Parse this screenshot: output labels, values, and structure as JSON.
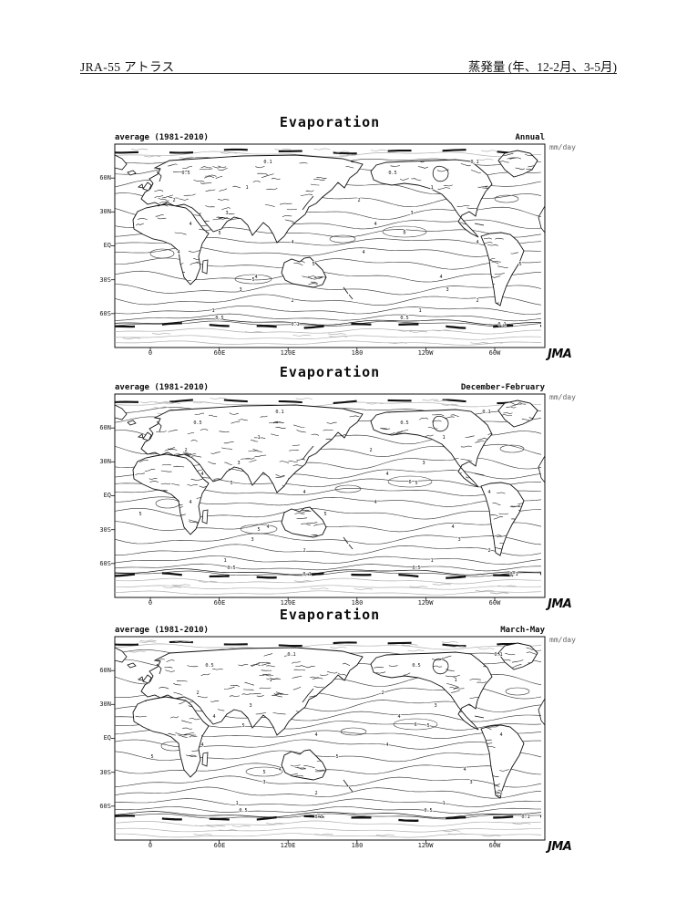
{
  "page": {
    "header_left": "JRA-55 アトラス",
    "header_right": "蒸発量 (年、12-2月、3-5月)"
  },
  "figure": {
    "title": "Evaporation",
    "subtitle_left": "average (1981-2010)",
    "units_label": "mm/day",
    "logo": "JMA",
    "y_axis_ticks": [
      "60N",
      "30N",
      "EQ",
      "30S",
      "60S"
    ],
    "x_axis_ticks": [
      "0",
      "60E",
      "120E",
      "180",
      "120W",
      "60W"
    ],
    "contour_labels": [
      "0.1",
      "0.5",
      "1",
      "2",
      "3",
      "4",
      "5",
      "6"
    ]
  },
  "panels": [
    {
      "season": "Annual"
    },
    {
      "season": "December-February"
    },
    {
      "season": "March-May"
    }
  ]
}
